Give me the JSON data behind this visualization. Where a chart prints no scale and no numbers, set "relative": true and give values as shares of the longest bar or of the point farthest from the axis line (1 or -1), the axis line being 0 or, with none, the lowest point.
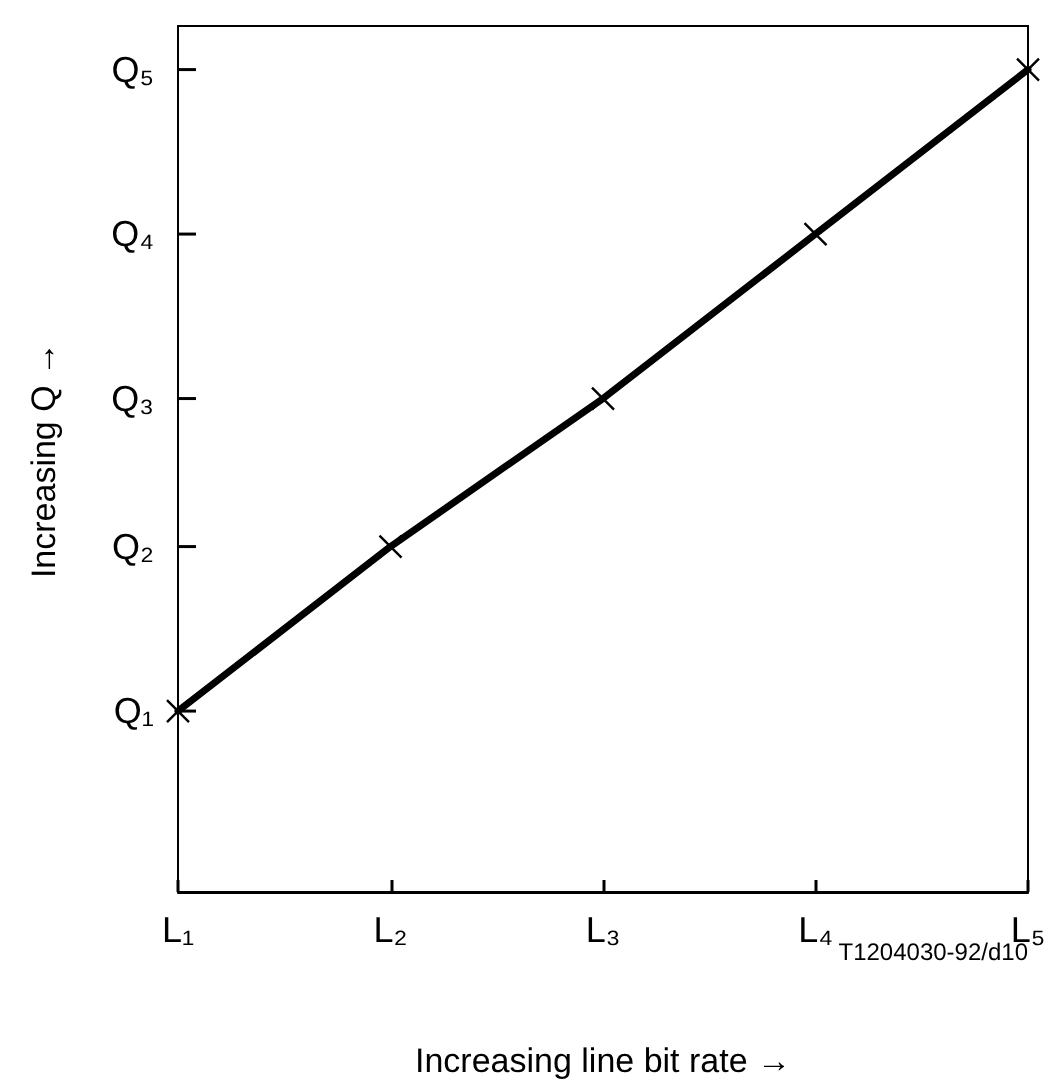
{
  "chart_data": {
    "type": "line",
    "relative": true,
    "xlabel": "Increasing line bit rate →",
    "ylabel": "Increasing Q →",
    "categories": [
      "L₁",
      "L₂",
      "L₃",
      "L₄",
      "L₅"
    ],
    "values": [
      0.22,
      0.42,
      0.6,
      0.8,
      1
    ],
    "color": "#000000",
    "marker": "cross",
    "line_style": "solid",
    "annotations": [
      "Q₁",
      "Q₂",
      "Q₃",
      "Q₄",
      "Q₅",
      "T1204030-92/d10"
    ]
  }
}
